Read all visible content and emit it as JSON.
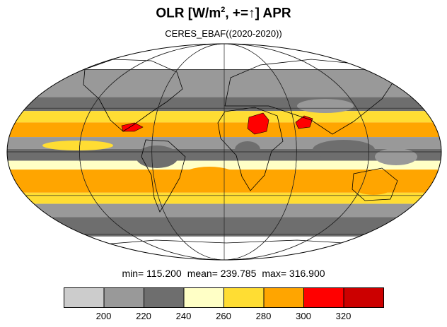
{
  "title": {
    "prefix": "OLR [W/m",
    "superscript": "2",
    "suffix": ", +=↑] APR"
  },
  "subtitle": "CERES_EBAF((2020-2020))",
  "stats": {
    "min": "min= 115.200",
    "mean": "mean= 239.785",
    "max": "max= 316.900"
  },
  "colorbar": {
    "colors": [
      "#cccccc",
      "#999999",
      "#6e6e6e",
      "#ffffc6",
      "#ffdd33",
      "#ffa500",
      "#ff0000",
      "#cc0000"
    ],
    "tick_labels": [
      "200",
      "220",
      "240",
      "260",
      "280",
      "300",
      "320"
    ]
  },
  "map": {
    "projection": "mollweide",
    "bands": [
      {
        "lat_min": 60,
        "lat_max": 90,
        "color": "#cccccc"
      },
      {
        "lat_min": 38,
        "lat_max": 60,
        "color": "#999999"
      },
      {
        "lat_min": 28,
        "lat_max": 38,
        "color": "#6e6e6e"
      },
      {
        "lat_min": 20,
        "lat_max": 28,
        "color": "#ffdd33"
      },
      {
        "lat_min": 10,
        "lat_max": 20,
        "color": "#ffa500"
      },
      {
        "lat_min": 2,
        "lat_max": 10,
        "color": "#999999"
      },
      {
        "lat_min": -6,
        "lat_max": 2,
        "color": "#6e6e6e"
      },
      {
        "lat_min": -12,
        "lat_max": -6,
        "color": "#ffffc6"
      },
      {
        "lat_min": -28,
        "lat_max": -12,
        "color": "#ffa500"
      },
      {
        "lat_min": -36,
        "lat_max": -28,
        "color": "#ffdd33"
      },
      {
        "lat_min": -46,
        "lat_max": -36,
        "color": "#999999"
      },
      {
        "lat_min": -62,
        "lat_max": -46,
        "color": "#6e6e6e"
      },
      {
        "lat_min": -90,
        "lat_max": -62,
        "color": "#cccccc"
      }
    ]
  }
}
